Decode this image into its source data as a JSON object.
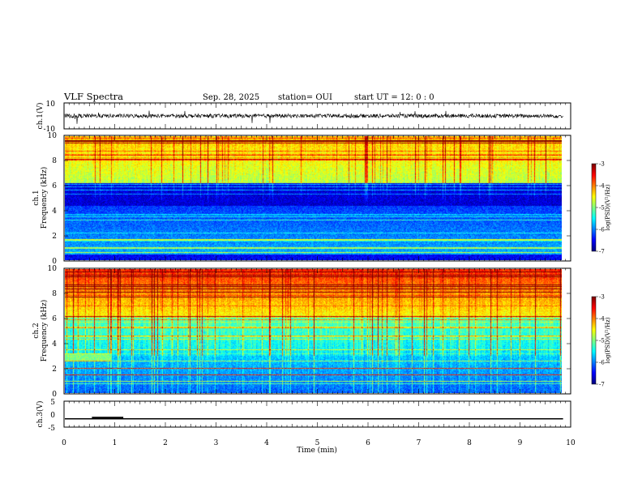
{
  "header": {
    "title": "VLF Spectra",
    "date": "Sep. 28, 2025",
    "station": "station= OUI",
    "start": "start  UT =   12: 0  : 0"
  },
  "chart_data": [
    {
      "type": "line",
      "name": "ch1-voltage",
      "ylabel": "ch.1(V)",
      "ylim": [
        -10,
        10
      ],
      "yticks": [
        "10",
        "-10"
      ],
      "xlim": [
        0,
        10
      ],
      "description_level": 0
    },
    {
      "type": "heatmap",
      "name": "ch1-spectrogram",
      "ylabel": "ch.1\nFrequency (kHz)",
      "ylabel_line1": "ch.1",
      "ylabel_line2": "Frequency (kHz)",
      "ylim": [
        0,
        10
      ],
      "yticks": [
        "0",
        "2",
        "4",
        "6",
        "8",
        "10"
      ],
      "xlim": [
        0,
        9.85
      ],
      "colorbar": {
        "label": "log(PSD)(V²/Hz)",
        "range": [
          -7,
          -3
        ],
        "ticks": [
          "-3",
          "-4",
          "-5",
          "-6",
          "-7"
        ]
      }
    },
    {
      "type": "heatmap",
      "name": "ch2-spectrogram",
      "ylabel_line1": "ch.2",
      "ylabel_line2": "Frequency (kHz)",
      "ylim": [
        0,
        10
      ],
      "yticks": [
        "0",
        "2",
        "4",
        "6",
        "8",
        "10"
      ],
      "xlim": [
        0,
        9.85
      ],
      "colorbar": {
        "label": "log(PSD)(V²/Hz)",
        "range": [
          -7,
          -3
        ],
        "ticks": [
          "-3",
          "-4",
          "-5",
          "-6",
          "-7"
        ]
      }
    },
    {
      "type": "line",
      "name": "ch3-voltage",
      "ylabel": "ch.3(V)",
      "ylim": [
        -5,
        5
      ],
      "yticks": [
        "5",
        "0",
        "-5"
      ],
      "xlim": [
        0,
        10
      ],
      "level": -1.8,
      "pulse": {
        "x_start": 0.55,
        "x_end": 1.17,
        "level": -1.5
      }
    }
  ],
  "xaxis": {
    "label": "Time (min)",
    "ticks": [
      "0",
      "1",
      "2",
      "3",
      "4",
      "5",
      "6",
      "7",
      "8",
      "9",
      "10"
    ],
    "range": [
      0,
      10
    ]
  },
  "colors": {
    "spectrum_low": "#000060",
    "spectrum_high": "#cc0000",
    "trace": "#000000"
  }
}
